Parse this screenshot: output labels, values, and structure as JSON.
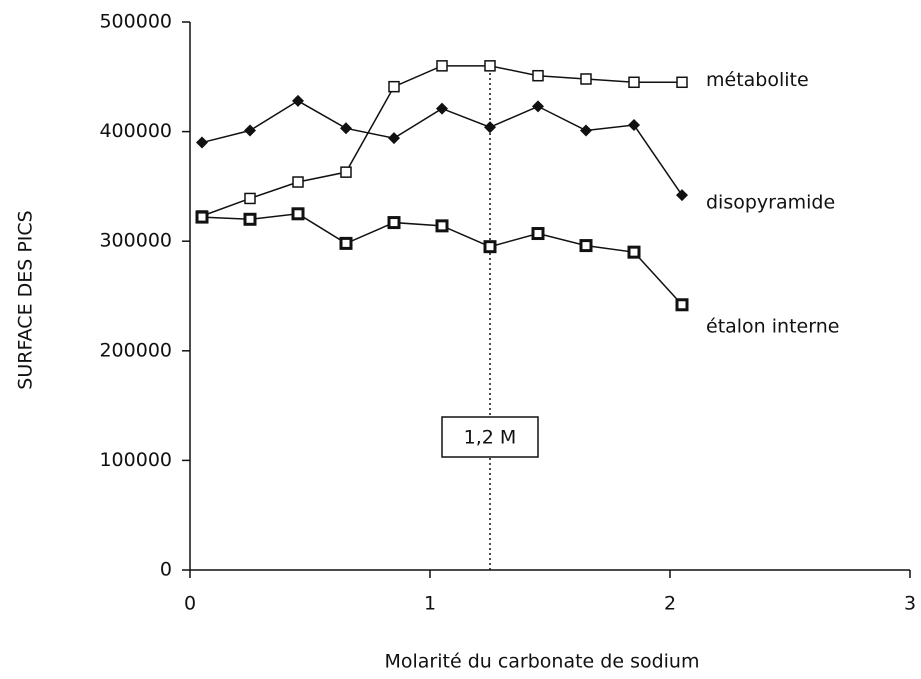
{
  "chart_data": {
    "type": "line",
    "xlabel": "Molarité du carbonate de sodium",
    "ylabel": "SURFACE DES PICS",
    "x": [
      0.05,
      0.25,
      0.45,
      0.65,
      0.85,
      1.05,
      1.25,
      1.45,
      1.65,
      1.85,
      2.05
    ],
    "series": [
      {
        "name": "métabolite",
        "color": "#111111",
        "marker": "square-open",
        "values": [
          323000,
          339000,
          354000,
          363000,
          441000,
          460000,
          460000,
          451000,
          448000,
          445000,
          445000
        ]
      },
      {
        "name": "disopyramide",
        "color": "#111111",
        "marker": "diamond",
        "values": [
          390000,
          401000,
          428000,
          403000,
          394000,
          421000,
          404000,
          423000,
          401000,
          406000,
          342000
        ]
      },
      {
        "name": "étalon interne",
        "color": "#111111",
        "marker": "square-bold",
        "values": [
          322000,
          320000,
          325000,
          298000,
          317000,
          314000,
          295000,
          307000,
          296000,
          290000,
          242000
        ]
      }
    ],
    "annotation": {
      "text": "1,2 M",
      "x": 1.25
    },
    "xlim": [
      0,
      3
    ],
    "xticks": [
      0,
      1,
      2,
      3
    ],
    "ylim": [
      0,
      500000
    ],
    "yticks": [
      0,
      100000,
      200000,
      300000,
      400000,
      500000
    ]
  }
}
